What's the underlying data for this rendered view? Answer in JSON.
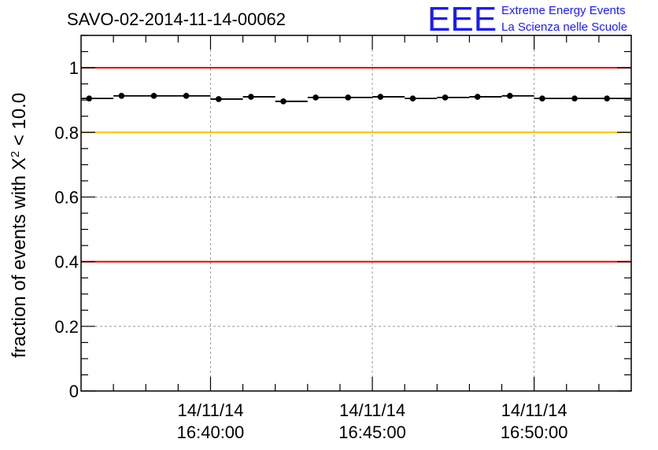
{
  "header": {
    "title": "SAVO-02-2014-11-14-00062"
  },
  "logo": {
    "mark": "EEE",
    "line1": "Extreme Energy Events",
    "line2": "La Scienza nelle Scuole",
    "color": "#1a1aff"
  },
  "chart_data": {
    "type": "scatter",
    "title": "SAVO-02-2014-11-14-00062",
    "ylabel_prefix": "fraction of events with ",
    "ylabel_symbol": "X",
    "ylabel_exp": "2",
    "ylabel_suffix": " < 10.0",
    "xlabel": "",
    "ylim": [
      0,
      1.1
    ],
    "x_minutes_from": "14/11/14 16:36:00",
    "xlim_minutes": [
      0,
      17
    ],
    "yticks": [
      {
        "value": 0,
        "label": "0"
      },
      {
        "value": 0.2,
        "label": "0.2"
      },
      {
        "value": 0.4,
        "label": "0.4"
      },
      {
        "value": 0.6,
        "label": "0.6"
      },
      {
        "value": 0.8,
        "label": "0.8"
      },
      {
        "value": 1.0,
        "label": "1"
      }
    ],
    "xticks": [
      {
        "minute": 4,
        "date": "14/11/14",
        "time": "16:40:00"
      },
      {
        "minute": 9,
        "date": "14/11/14",
        "time": "16:45:00"
      },
      {
        "minute": 14,
        "date": "14/11/14",
        "time": "16:50:00"
      }
    ],
    "grid": true,
    "reference_lines": [
      {
        "y": 1.0,
        "color": "#e00000"
      },
      {
        "y": 0.8,
        "color": "#ffc000"
      },
      {
        "y": 0.4,
        "color": "#e00000"
      }
    ],
    "bin_width_minutes": 1,
    "points": [
      {
        "minute": 0.25,
        "y": 0.905
      },
      {
        "minute": 1.25,
        "y": 0.913
      },
      {
        "minute": 2.25,
        "y": 0.913
      },
      {
        "minute": 3.25,
        "y": 0.913
      },
      {
        "minute": 4.25,
        "y": 0.903
      },
      {
        "minute": 5.25,
        "y": 0.91
      },
      {
        "minute": 6.25,
        "y": 0.896
      },
      {
        "minute": 7.25,
        "y": 0.908
      },
      {
        "minute": 8.25,
        "y": 0.908
      },
      {
        "minute": 9.25,
        "y": 0.91
      },
      {
        "minute": 10.25,
        "y": 0.905
      },
      {
        "minute": 11.25,
        "y": 0.908
      },
      {
        "minute": 12.25,
        "y": 0.91
      },
      {
        "minute": 13.25,
        "y": 0.913
      },
      {
        "minute": 14.25,
        "y": 0.905
      },
      {
        "minute": 15.25,
        "y": 0.905
      },
      {
        "minute": 16.25,
        "y": 0.905
      }
    ],
    "marker_color": "#000000"
  }
}
